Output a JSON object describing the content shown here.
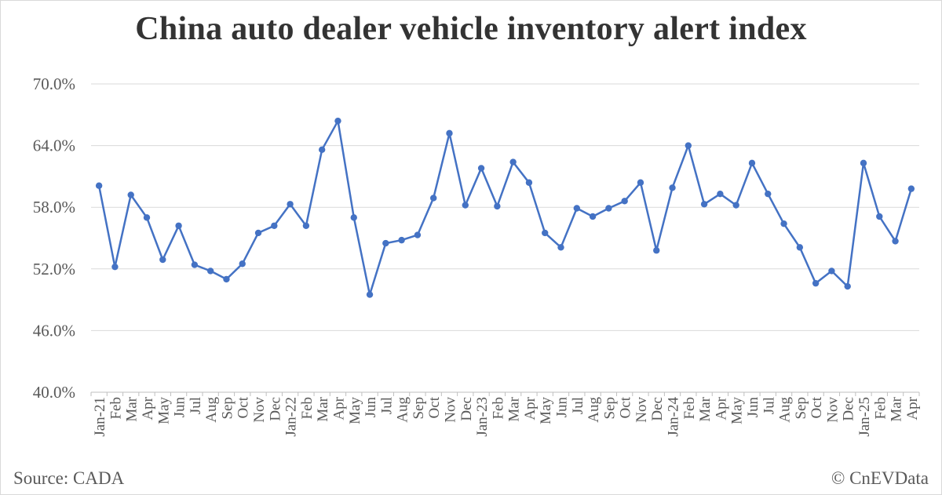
{
  "title": "China auto dealer vehicle inventory alert index",
  "source": "Source: CADA",
  "credit": "© CnEVData",
  "colors": {
    "line": "#4472C4",
    "grid": "#d9d9d9",
    "text": "#595959",
    "title": "#333333"
  },
  "chart_data": {
    "type": "line",
    "title": "China auto dealer vehicle inventory alert index",
    "xlabel": "",
    "ylabel": "",
    "ylim": [
      40,
      70
    ],
    "yticks": [
      "40.0%",
      "46.0%",
      "52.0%",
      "58.0%",
      "64.0%",
      "70.0%"
    ],
    "grid": true,
    "legend": "none",
    "categories": [
      "Jan-21",
      "Feb",
      "Mar",
      "Apr",
      "May",
      "Jun",
      "Jul",
      "Aug",
      "Sep",
      "Oct",
      "Nov",
      "Dec",
      "Jan-22",
      "Feb",
      "Mar",
      "Apr",
      "May",
      "Jun",
      "Jul",
      "Aug",
      "Sep",
      "Oct",
      "Nov",
      "Dec",
      "Jan-23",
      "Feb",
      "Mar",
      "Apr",
      "May",
      "Jun",
      "Jul",
      "Aug",
      "Sep",
      "Oct",
      "Nov",
      "Dec",
      "Jan-24",
      "Feb",
      "Mar",
      "Apr",
      "May",
      "Jun",
      "Jul",
      "Aug",
      "Sep",
      "Oct",
      "Nov",
      "Dec",
      "Jan-25",
      "Feb",
      "Mar",
      "Apr"
    ],
    "series": [
      {
        "values": [
          60.1,
          52.2,
          59.2,
          57.0,
          52.9,
          56.2,
          52.4,
          51.8,
          51.0,
          52.5,
          55.5,
          56.2,
          58.3,
          56.2,
          63.6,
          66.4,
          57.0,
          49.5,
          54.5,
          54.8,
          55.3,
          58.9,
          65.2,
          58.2,
          61.8,
          58.1,
          62.4,
          60.4,
          55.5,
          54.1,
          57.9,
          57.1,
          57.9,
          58.6,
          60.4,
          53.8,
          59.9,
          64.0,
          58.3,
          59.3,
          58.2,
          62.3,
          59.3,
          56.4,
          54.1,
          50.6,
          51.8,
          50.3,
          62.3,
          57.1,
          54.7,
          59.8
        ]
      }
    ]
  }
}
